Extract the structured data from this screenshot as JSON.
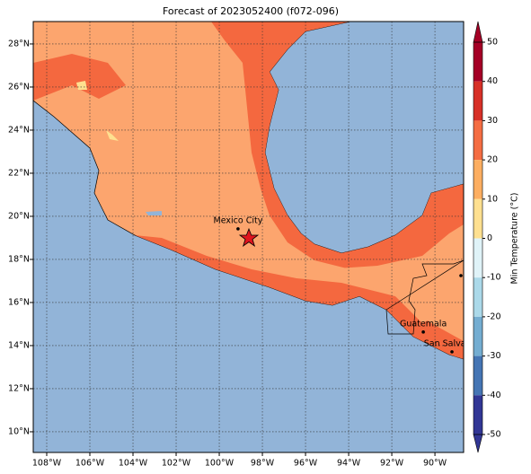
{
  "map": {
    "title": "Forecast of 2023052400 (f072-096)",
    "xlim": [
      -108.625,
      -88.67
    ],
    "ylim": [
      9.04,
      29.04
    ],
    "xticks": [
      {
        "value": -108,
        "label": "108°W"
      },
      {
        "value": -106,
        "label": "106°W"
      },
      {
        "value": -104,
        "label": "104°W"
      },
      {
        "value": -102,
        "label": "102°W"
      },
      {
        "value": -100,
        "label": "100°W"
      },
      {
        "value": -98,
        "label": "98°W"
      },
      {
        "value": -96,
        "label": "96°W"
      },
      {
        "value": -94,
        "label": "94°W"
      },
      {
        "value": -92,
        "label": "92°W"
      },
      {
        "value": -90,
        "label": "90°W"
      }
    ],
    "yticks": [
      {
        "value": 10,
        "label": "10°N"
      },
      {
        "value": 12,
        "label": "12°N"
      },
      {
        "value": 14,
        "label": "14°N"
      },
      {
        "value": 16,
        "label": "16°N"
      },
      {
        "value": 18,
        "label": "18°N"
      },
      {
        "value": 20,
        "label": "20°N"
      },
      {
        "value": 22,
        "label": "22°N"
      },
      {
        "value": 24,
        "label": "24°N"
      },
      {
        "value": 26,
        "label": "26°N"
      },
      {
        "value": 28,
        "label": "28°N"
      }
    ],
    "grid": true,
    "cities": [
      {
        "name": "Mexico City",
        "lon": -99.13,
        "lat": 19.42
      },
      {
        "name": "Guatemala",
        "lon": -90.54,
        "lat": 14.63
      },
      {
        "name": "San Salvador",
        "lon": -89.21,
        "lat": 13.71
      }
    ],
    "colorbar": {
      "label": "Min Temperature (°C)",
      "lim": [
        -50,
        50
      ],
      "ticks": [
        50,
        40,
        30,
        20,
        10,
        0,
        -10,
        -20,
        -30,
        -40,
        -50
      ],
      "colors": [
        "#a50026",
        "#d73027",
        "#f46d43",
        "#fdae61",
        "#fee090",
        "#e0f3f8",
        "#abd9e9",
        "#74add1",
        "#4575b4",
        "#313695"
      ]
    }
  }
}
